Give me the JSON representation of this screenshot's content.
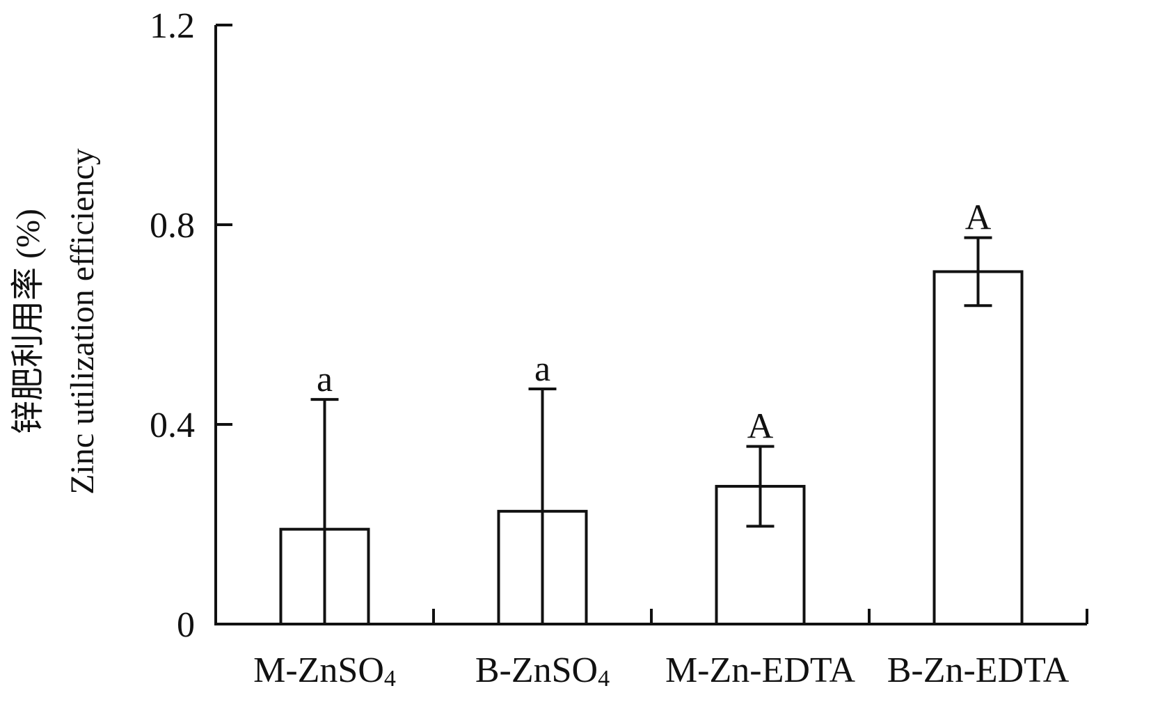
{
  "chart_data": {
    "type": "bar",
    "categories": [
      "M-ZnSO4",
      "B-ZnSO4",
      "M-Zn-EDTA",
      "B-Zn-EDTA"
    ],
    "category_labels": [
      {
        "main": "M-ZnSO",
        "sub": "4"
      },
      {
        "main": "B-ZnSO",
        "sub": "4"
      },
      {
        "main": "M-Zn-EDTA",
        "sub": ""
      },
      {
        "main": "B-Zn-EDTA",
        "sub": ""
      }
    ],
    "values": [
      0.19,
      0.226,
      0.276,
      0.706
    ],
    "error": [
      0.26,
      0.245,
      0.08,
      0.068
    ],
    "significance": [
      "a",
      "a",
      "A",
      "A"
    ],
    "ylabel_cn": "锌肥利用率 (%)",
    "ylabel_en": "Zinc utilization efficiency",
    "ylim": [
      0,
      1.2
    ],
    "yticks": [
      0,
      0.4,
      0.8,
      1.2
    ],
    "ytick_labels": [
      "0",
      "0.4",
      "0.8",
      "1.2"
    ],
    "grid": false,
    "bar_fill": "#ffffff",
    "stroke": "#111111"
  }
}
